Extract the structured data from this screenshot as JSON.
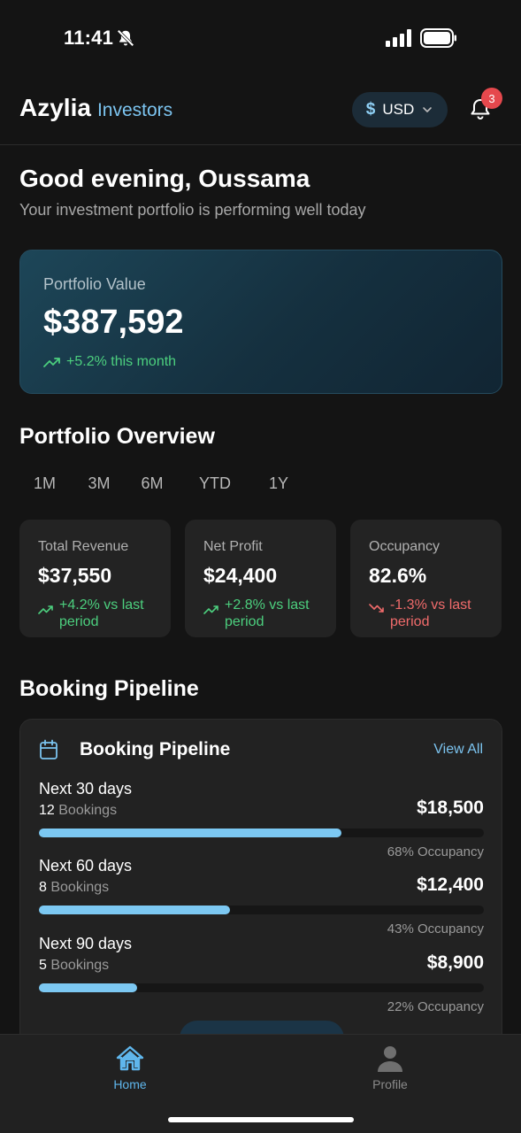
{
  "status_bar": {
    "time": "11:41"
  },
  "header": {
    "brand_name": "Azylia",
    "brand_sub": "Investors",
    "currency_symbol": "$",
    "currency": "USD",
    "notification_count": "3"
  },
  "greeting": {
    "title": "Good evening, Oussama",
    "subtitle": "Your investment portfolio is performing well today"
  },
  "portfolio": {
    "label": "Portfolio Value",
    "value": "$387,592",
    "change": "+5.2% this month"
  },
  "overview": {
    "title": "Portfolio Overview",
    "tabs": [
      {
        "label": "1M",
        "active": true
      },
      {
        "label": "3M",
        "active": false
      },
      {
        "label": "6M",
        "active": false
      },
      {
        "label": "YTD",
        "active": false
      },
      {
        "label": "1Y",
        "active": false
      }
    ],
    "stats": [
      {
        "label": "Total Revenue",
        "value": "$37,550",
        "change": "+4.2% vs last period",
        "trend": "up"
      },
      {
        "label": "Net Profit",
        "value": "$24,400",
        "change": "+2.8% vs last period",
        "trend": "up"
      },
      {
        "label": "Occupancy",
        "value": "82.6%",
        "change": "-1.3% vs last period",
        "trend": "down"
      }
    ]
  },
  "pipeline": {
    "section_title": "Booking Pipeline",
    "card_title": "Booking Pipeline",
    "view_all": "View All",
    "bookings_word": "Bookings",
    "rows": [
      {
        "period": "Next 30 days",
        "bookings": "12",
        "amount": "$18,500",
        "occupancy_pct": 68,
        "occupancy": "68% Occupancy"
      },
      {
        "period": "Next 60 days",
        "bookings": "8",
        "amount": "$12,400",
        "occupancy_pct": 43,
        "occupancy": "43% Occupancy"
      },
      {
        "period": "Next 90 days",
        "bookings": "5",
        "amount": "$8,900",
        "occupancy_pct": 22,
        "occupancy": "22% Occupancy"
      }
    ]
  },
  "bottom_nav": {
    "home": "Home",
    "profile": "Profile"
  },
  "colors": {
    "accent": "#7cc4f0",
    "positive": "#4ccf7e",
    "negative": "#f06b6b",
    "badge": "#e5484d"
  }
}
